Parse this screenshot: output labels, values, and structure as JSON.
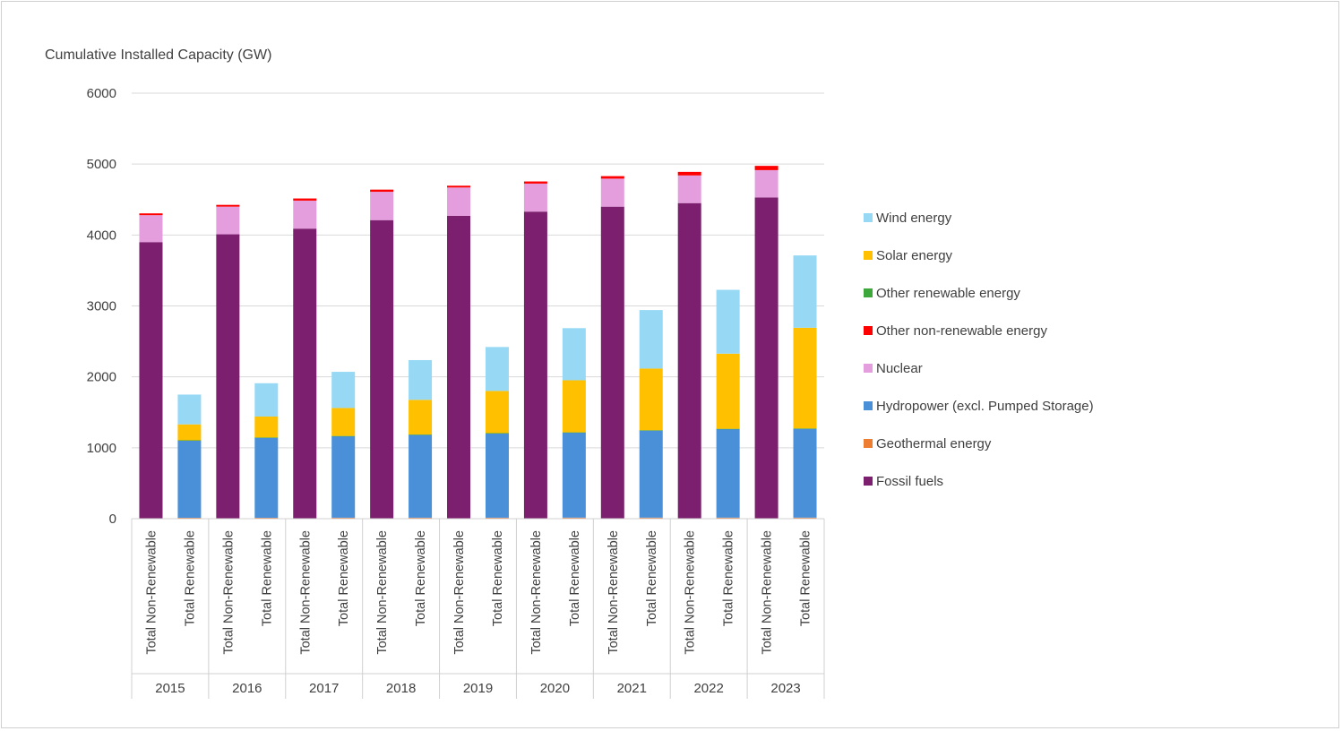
{
  "chart_data": {
    "type": "bar",
    "stacked": true,
    "title": "",
    "ylabel": "Cumulative Installed Capacity (GW)",
    "xlabel": "",
    "ylim": [
      0,
      6000
    ],
    "yticks": [
      0,
      1000,
      2000,
      3000,
      4000,
      5000,
      6000
    ],
    "grid": true,
    "legend_position": "right",
    "years": [
      "2015",
      "2016",
      "2017",
      "2018",
      "2019",
      "2020",
      "2021",
      "2022",
      "2023"
    ],
    "subcategories": [
      "Total Non-Renewable",
      "Total Renewable"
    ],
    "series": [
      {
        "key": "fossil",
        "name": "Fossil fuels",
        "color": "#7B1F6E",
        "values": [
          [
            3900,
            0
          ],
          [
            4010,
            0
          ],
          [
            4090,
            0
          ],
          [
            4210,
            0
          ],
          [
            4270,
            0
          ],
          [
            4330,
            0
          ],
          [
            4400,
            0
          ],
          [
            4450,
            0
          ],
          [
            4530,
            0
          ]
        ]
      },
      {
        "key": "geothermal",
        "name": "Geothermal energy",
        "color": "#ED7D31",
        "values": [
          [
            0,
            13
          ],
          [
            0,
            13
          ],
          [
            0,
            14
          ],
          [
            0,
            14
          ],
          [
            0,
            14
          ],
          [
            0,
            15
          ],
          [
            0,
            15
          ],
          [
            0,
            15
          ],
          [
            0,
            15
          ]
        ]
      },
      {
        "key": "hydro",
        "name": "Hydropower (excl. Pumped Storage)",
        "color": "#4A90D9",
        "values": [
          [
            0,
            1090
          ],
          [
            0,
            1130
          ],
          [
            0,
            1150
          ],
          [
            0,
            1170
          ],
          [
            0,
            1190
          ],
          [
            0,
            1200
          ],
          [
            0,
            1230
          ],
          [
            0,
            1250
          ],
          [
            0,
            1255
          ]
        ]
      },
      {
        "key": "nuclear",
        "name": "Nuclear",
        "color": "#E59EDD",
        "values": [
          [
            380,
            0
          ],
          [
            390,
            0
          ],
          [
            395,
            0
          ],
          [
            400,
            0
          ],
          [
            400,
            0
          ],
          [
            395,
            0
          ],
          [
            395,
            0
          ],
          [
            390,
            0
          ],
          [
            385,
            0
          ]
        ]
      },
      {
        "key": "other_nonren",
        "name": "Other non-renewable energy",
        "color": "#FF0000",
        "values": [
          [
            25,
            0
          ],
          [
            25,
            0
          ],
          [
            30,
            0
          ],
          [
            30,
            0
          ],
          [
            25,
            0
          ],
          [
            30,
            0
          ],
          [
            35,
            0
          ],
          [
            50,
            0
          ],
          [
            60,
            0
          ]
        ]
      },
      {
        "key": "other_ren",
        "name": "Other renewable energy",
        "color": "#3CA83C",
        "values": [
          [
            0,
            2
          ],
          [
            0,
            2
          ],
          [
            0,
            2
          ],
          [
            0,
            2
          ],
          [
            0,
            2
          ],
          [
            0,
            2
          ],
          [
            0,
            2
          ],
          [
            0,
            2
          ],
          [
            0,
            2
          ]
        ]
      },
      {
        "key": "solar",
        "name": "Solar energy",
        "color": "#FFC000",
        "values": [
          [
            0,
            225
          ],
          [
            0,
            295
          ],
          [
            0,
            395
          ],
          [
            0,
            490
          ],
          [
            0,
            595
          ],
          [
            0,
            735
          ],
          [
            0,
            870
          ],
          [
            0,
            1060
          ],
          [
            0,
            1420
          ]
        ]
      },
      {
        "key": "wind",
        "name": "Wind energy",
        "color": "#97D9F5",
        "values": [
          [
            0,
            420
          ],
          [
            0,
            470
          ],
          [
            0,
            510
          ],
          [
            0,
            560
          ],
          [
            0,
            620
          ],
          [
            0,
            735
          ],
          [
            0,
            825
          ],
          [
            0,
            900
          ],
          [
            0,
            1020
          ]
        ]
      }
    ],
    "legend_order": [
      "wind",
      "solar",
      "other_ren",
      "other_nonren",
      "nuclear",
      "hydro",
      "geothermal",
      "fossil"
    ]
  }
}
